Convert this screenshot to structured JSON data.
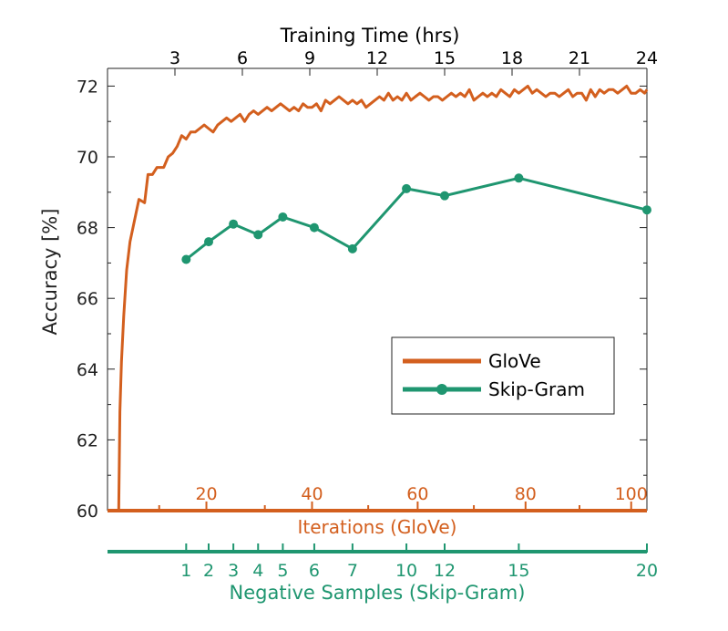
{
  "chart_data": {
    "type": "line",
    "xlabel_top": "Training Time (hrs)",
    "ylabel": "Accuracy [%]",
    "ylim": [
      60,
      72.5
    ],
    "y_ticks": [
      "60",
      "62",
      "64",
      "66",
      "68",
      "70",
      "72"
    ],
    "top_axis": {
      "range": [
        0,
        24
      ],
      "ticks": [
        3,
        6,
        9,
        12,
        15,
        18,
        21,
        24
      ],
      "labels": [
        "3",
        "6",
        "9",
        "12",
        "15",
        "18",
        "21",
        "24"
      ]
    },
    "iterations_axis": {
      "label": "Iterations (GloVe)",
      "color": "#d35f1e",
      "labels": [
        {
          "text": "20",
          "t": 4.4
        },
        {
          "text": "40",
          "t": 9.1
        },
        {
          "text": "60",
          "t": 13.8
        },
        {
          "text": "80",
          "t": 18.6
        },
        {
          "text": "100",
          "t": 23.3
        }
      ],
      "minor_ticks": [
        2.3,
        7.0,
        11.6,
        16.3,
        21.0
      ]
    },
    "negative_samples_axis": {
      "label": "Negative Samples (Skip-Gram)",
      "color": "#1f9670",
      "ticks": [
        {
          "text": "1",
          "t": 3.5
        },
        {
          "text": "2",
          "t": 4.5
        },
        {
          "text": "3",
          "t": 5.6
        },
        {
          "text": "4",
          "t": 6.7
        },
        {
          "text": "5",
          "t": 7.8
        },
        {
          "text": "6",
          "t": 9.2
        },
        {
          "text": "7",
          "t": 10.9
        },
        {
          "text": "10",
          "t": 13.3
        },
        {
          "text": "12",
          "t": 15.0
        },
        {
          "text": "15",
          "t": 18.3
        },
        {
          "text": "20",
          "t": 24.0
        }
      ]
    },
    "legend_position": "lower-right",
    "series": [
      {
        "name": "GloVe",
        "color": "#d35f1e",
        "marker": "none",
        "x": [
          0.5,
          0.55,
          0.62,
          0.72,
          0.85,
          1.0,
          1.2,
          1.4,
          1.65,
          1.8,
          2.0,
          2.2,
          2.5,
          2.7,
          2.9,
          3.1,
          3.3,
          3.5,
          3.7,
          3.9,
          4.1,
          4.3,
          4.5,
          4.7,
          4.9,
          5.1,
          5.3,
          5.5,
          5.7,
          5.9,
          6.1,
          6.3,
          6.5,
          6.7,
          6.9,
          7.1,
          7.3,
          7.5,
          7.7,
          7.9,
          8.1,
          8.3,
          8.5,
          8.7,
          8.9,
          9.1,
          9.3,
          9.5,
          9.7,
          9.9,
          10.1,
          10.3,
          10.5,
          10.7,
          10.9,
          11.1,
          11.3,
          11.5,
          11.7,
          11.9,
          12.1,
          12.3,
          12.5,
          12.7,
          12.9,
          13.1,
          13.3,
          13.5,
          13.7,
          13.9,
          14.1,
          14.3,
          14.5,
          14.7,
          14.9,
          15.1,
          15.3,
          15.5,
          15.7,
          15.9,
          16.1,
          16.3,
          16.5,
          16.7,
          16.9,
          17.1,
          17.3,
          17.5,
          17.7,
          17.9,
          18.1,
          18.3,
          18.5,
          18.7,
          18.9,
          19.1,
          19.3,
          19.5,
          19.7,
          19.9,
          20.1,
          20.3,
          20.5,
          20.7,
          20.9,
          21.1,
          21.3,
          21.5,
          21.7,
          21.9,
          22.1,
          22.3,
          22.5,
          22.7,
          22.9,
          23.1,
          23.3,
          23.5,
          23.7,
          23.9,
          24.0
        ],
        "y": [
          60.0,
          62.8,
          64.2,
          65.5,
          66.8,
          67.6,
          68.2,
          68.8,
          68.7,
          69.5,
          69.5,
          69.7,
          69.7,
          70.0,
          70.1,
          70.3,
          70.6,
          70.5,
          70.7,
          70.7,
          70.8,
          70.9,
          70.8,
          70.7,
          70.9,
          71.0,
          71.1,
          71.0,
          71.1,
          71.2,
          71.0,
          71.2,
          71.3,
          71.2,
          71.3,
          71.4,
          71.3,
          71.4,
          71.5,
          71.4,
          71.3,
          71.4,
          71.3,
          71.5,
          71.4,
          71.4,
          71.5,
          71.3,
          71.6,
          71.5,
          71.6,
          71.7,
          71.6,
          71.5,
          71.6,
          71.5,
          71.6,
          71.4,
          71.5,
          71.6,
          71.7,
          71.6,
          71.8,
          71.6,
          71.7,
          71.6,
          71.8,
          71.6,
          71.7,
          71.8,
          71.7,
          71.6,
          71.7,
          71.7,
          71.6,
          71.7,
          71.8,
          71.7,
          71.8,
          71.7,
          71.9,
          71.6,
          71.7,
          71.8,
          71.7,
          71.8,
          71.7,
          71.9,
          71.8,
          71.7,
          71.9,
          71.8,
          71.9,
          72.0,
          71.8,
          71.9,
          71.8,
          71.7,
          71.8,
          71.8,
          71.7,
          71.8,
          71.9,
          71.7,
          71.8,
          71.8,
          71.6,
          71.9,
          71.7,
          71.9,
          71.8,
          71.9,
          71.9,
          71.8,
          71.9,
          72.0,
          71.8,
          71.8,
          71.9,
          71.8,
          71.9
        ]
      },
      {
        "name": "Skip-Gram",
        "color": "#1f9670",
        "marker": "circle",
        "x": [
          3.5,
          4.5,
          5.6,
          6.7,
          7.8,
          9.2,
          10.9,
          13.3,
          15.0,
          18.3,
          24.0
        ],
        "y": [
          67.1,
          67.6,
          68.1,
          67.8,
          68.3,
          68.0,
          67.4,
          69.1,
          68.9,
          69.4,
          68.5
        ]
      }
    ]
  }
}
